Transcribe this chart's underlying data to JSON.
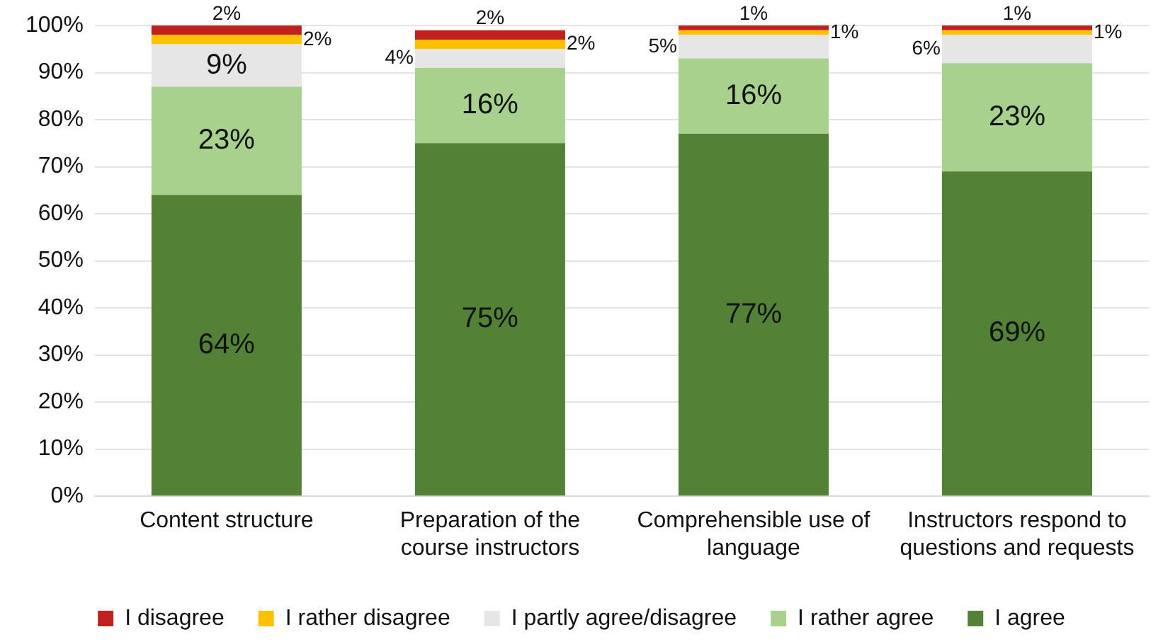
{
  "chart_data": {
    "type": "bar",
    "stacked": true,
    "categories": [
      "Content structure",
      "Preparation of the course instructors",
      "Comprehensible use of language",
      "Instructors respond to questions and requests"
    ],
    "series": [
      {
        "name": "I agree",
        "color": "#538135",
        "values": [
          64,
          75,
          77,
          69
        ],
        "value_labels": [
          "64%",
          "75%",
          "77%",
          "69%"
        ]
      },
      {
        "name": "I rather agree",
        "color": "#a9d18e",
        "values": [
          23,
          16,
          16,
          23
        ],
        "value_labels": [
          "23%",
          "16%",
          "16%",
          "23%"
        ]
      },
      {
        "name": "I partly agree/disagree",
        "color": "#e7e6e6",
        "values": [
          9,
          4,
          5,
          6
        ],
        "value_labels": [
          "9%",
          "4%",
          "5%",
          "6%"
        ]
      },
      {
        "name": "I rather disagree",
        "color": "#ffc000",
        "values": [
          2,
          2,
          1,
          1
        ],
        "value_labels": [
          "2%",
          "2%",
          "1%",
          "1%"
        ]
      },
      {
        "name": "I disagree",
        "color": "#c0211f",
        "values": [
          2,
          2,
          1,
          1
        ],
        "value_labels": [
          "2%",
          "2%",
          "1%",
          "1%"
        ]
      }
    ],
    "ylim": [
      0,
      100
    ],
    "yticks": [
      {
        "value": 0,
        "label": "0%"
      },
      {
        "value": 10,
        "label": "10%"
      },
      {
        "value": 20,
        "label": "20%"
      },
      {
        "value": 30,
        "label": "30%"
      },
      {
        "value": 40,
        "label": "40%"
      },
      {
        "value": 50,
        "label": "50%"
      },
      {
        "value": 60,
        "label": "60%"
      },
      {
        "value": 70,
        "label": "70%"
      },
      {
        "value": 80,
        "label": "80%"
      },
      {
        "value": 90,
        "label": "90%"
      },
      {
        "value": 100,
        "label": "100%"
      }
    ],
    "grid": "y",
    "legend": "bottom"
  }
}
